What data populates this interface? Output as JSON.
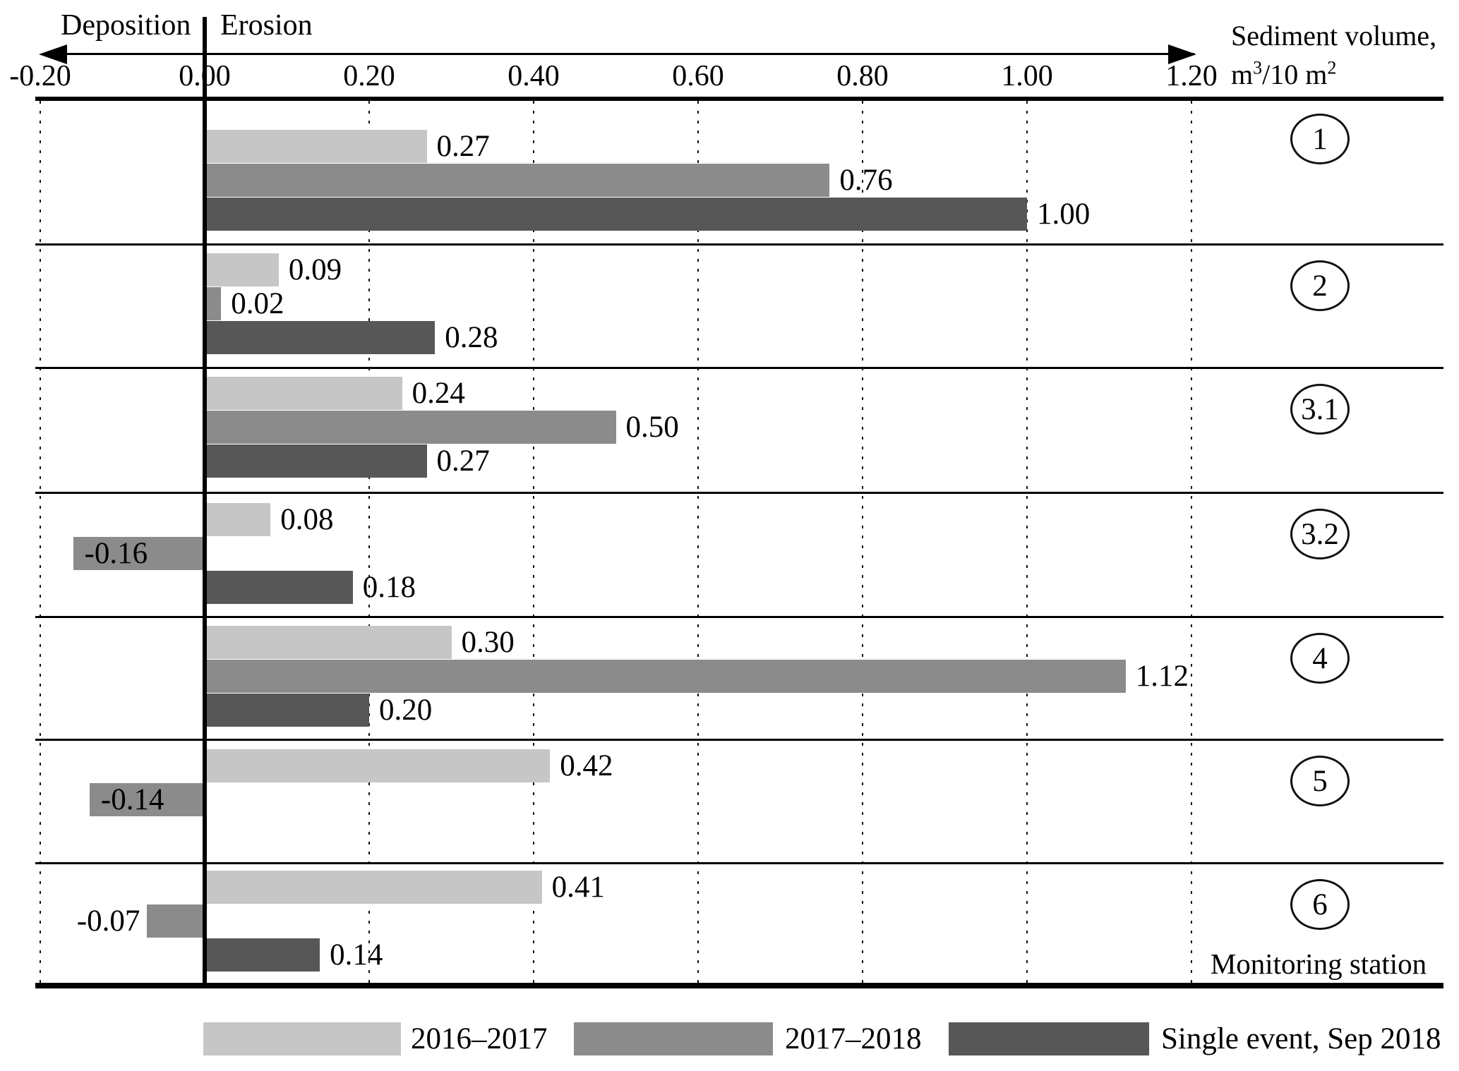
{
  "chart_data": {
    "type": "bar",
    "orientation": "horizontal",
    "direction_left": "Deposition",
    "direction_right": "Erosion",
    "unit_label": {
      "line1": "Sediment volume,",
      "base1": "m",
      "sup1": "3",
      "mid": "/10 m",
      "sup2": "2"
    },
    "station_axis_label": "Monitoring station",
    "x_axis": {
      "range": [
        -0.2,
        1.2
      ],
      "tick_labels": [
        "-0.20",
        "0.00",
        "0.20",
        "0.40",
        "0.60",
        "0.80",
        "1.00",
        "1.20"
      ],
      "tick_values": [
        -0.2,
        0,
        0.2,
        0.4,
        0.6,
        0.8,
        1.0,
        1.2
      ],
      "gridline_values": [
        -0.2,
        0.2,
        0.4,
        0.6,
        0.8,
        1.0,
        1.2
      ],
      "grid_style": "dotted",
      "zero_line": true
    },
    "series": [
      {
        "name": "2016–2017",
        "color": "#c6c6c6"
      },
      {
        "name": "2017–2018",
        "color": "#8b8b8b"
      },
      {
        "name": "Single event, Sep 2018",
        "color": "#575757"
      }
    ],
    "stations": [
      {
        "station": "1",
        "values": [
          0.27,
          0.76,
          1.0
        ],
        "labels": [
          "0.27",
          "0.76",
          "1.00"
        ]
      },
      {
        "station": "2",
        "values": [
          0.09,
          0.02,
          0.28
        ],
        "labels": [
          "0.09",
          "0.02",
          "0.28"
        ]
      },
      {
        "station": "3.1",
        "values": [
          0.24,
          0.5,
          0.27
        ],
        "labels": [
          "0.24",
          "0.50",
          "0.27"
        ]
      },
      {
        "station": "3.2",
        "values": [
          0.08,
          -0.16,
          0.18
        ],
        "labels": [
          "0.08",
          "-0.16",
          "0.18"
        ]
      },
      {
        "station": "4",
        "values": [
          0.3,
          1.12,
          0.2
        ],
        "labels": [
          "0.30",
          "1.12",
          "0.20"
        ]
      },
      {
        "station": "5",
        "values": [
          0.42,
          -0.14,
          null
        ],
        "labels": [
          "0.42",
          "-0.14",
          null
        ]
      },
      {
        "station": "6",
        "values": [
          0.41,
          -0.07,
          0.14
        ],
        "labels": [
          "0.41",
          "-0.07",
          "0.14"
        ]
      }
    ],
    "legend": [
      "2016–2017",
      "2017–2018",
      "Single event, Sep 2018"
    ],
    "legend_position": "bottom"
  }
}
